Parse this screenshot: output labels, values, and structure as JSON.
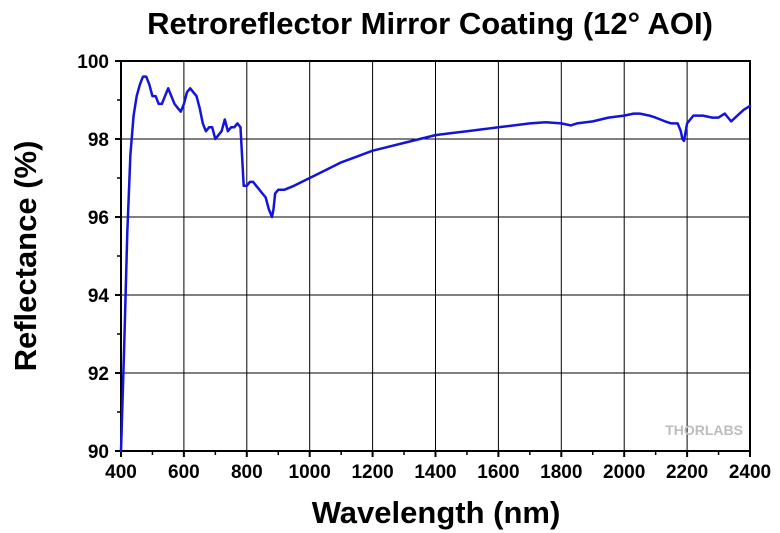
{
  "chart_data": {
    "type": "line",
    "title": "Retroreflector Mirror Coating (12° AOI)",
    "xlabel": "Wavelength (nm)",
    "ylabel": "Reflectance (%)",
    "xlim": [
      400,
      2400
    ],
    "ylim": [
      90,
      100
    ],
    "x_ticks": [
      "400",
      "600",
      "800",
      "1000",
      "1200",
      "1400",
      "1600",
      "1800",
      "2000",
      "2200",
      "2400"
    ],
    "y_ticks": [
      "90",
      "92",
      "94",
      "96",
      "98",
      "100"
    ],
    "grid": true,
    "line_color": "#1414d8",
    "series": [
      {
        "x": [
          400,
          410,
          420,
          430,
          440,
          450,
          460,
          470,
          480,
          490,
          500,
          510,
          520,
          530,
          540,
          550,
          560,
          570,
          580,
          590,
          600,
          610,
          620,
          630,
          640,
          650,
          660,
          670,
          680,
          690,
          700,
          710,
          720,
          730,
          740,
          750,
          760,
          770,
          780,
          790,
          800,
          810,
          820,
          830,
          840,
          850,
          860,
          870,
          880,
          885,
          890,
          900,
          920,
          950,
          1000,
          1050,
          1100,
          1150,
          1200,
          1250,
          1300,
          1350,
          1400,
          1450,
          1500,
          1550,
          1600,
          1650,
          1700,
          1750,
          1800,
          1830,
          1850,
          1900,
          1950,
          2000,
          2030,
          2050,
          2080,
          2100,
          2130,
          2150,
          2170,
          2180,
          2185,
          2190,
          2200,
          2220,
          2250,
          2280,
          2300,
          2320,
          2340,
          2360,
          2380,
          2400
        ],
        "y": [
          90.0,
          92.6,
          95.6,
          97.6,
          98.6,
          99.1,
          99.4,
          99.6,
          99.6,
          99.4,
          99.1,
          99.1,
          98.9,
          98.9,
          99.1,
          99.3,
          99.1,
          98.9,
          98.8,
          98.7,
          98.9,
          99.2,
          99.3,
          99.2,
          99.1,
          98.8,
          98.4,
          98.2,
          98.3,
          98.3,
          98.0,
          98.1,
          98.2,
          98.5,
          98.2,
          98.3,
          98.3,
          98.4,
          98.3,
          96.8,
          96.8,
          96.9,
          96.9,
          96.8,
          96.7,
          96.6,
          96.5,
          96.2,
          96.0,
          96.2,
          96.6,
          96.7,
          96.7,
          96.8,
          97.0,
          97.2,
          97.4,
          97.55,
          97.7,
          97.8,
          97.9,
          98.0,
          98.1,
          98.15,
          98.2,
          98.25,
          98.3,
          98.35,
          98.4,
          98.43,
          98.4,
          98.35,
          98.4,
          98.45,
          98.55,
          98.6,
          98.65,
          98.65,
          98.6,
          98.55,
          98.45,
          98.4,
          98.4,
          98.2,
          98.0,
          97.95,
          98.4,
          98.6,
          98.6,
          98.55,
          98.55,
          98.65,
          98.45,
          98.6,
          98.75,
          98.85
        ]
      }
    ],
    "watermark": "THORLABS"
  }
}
